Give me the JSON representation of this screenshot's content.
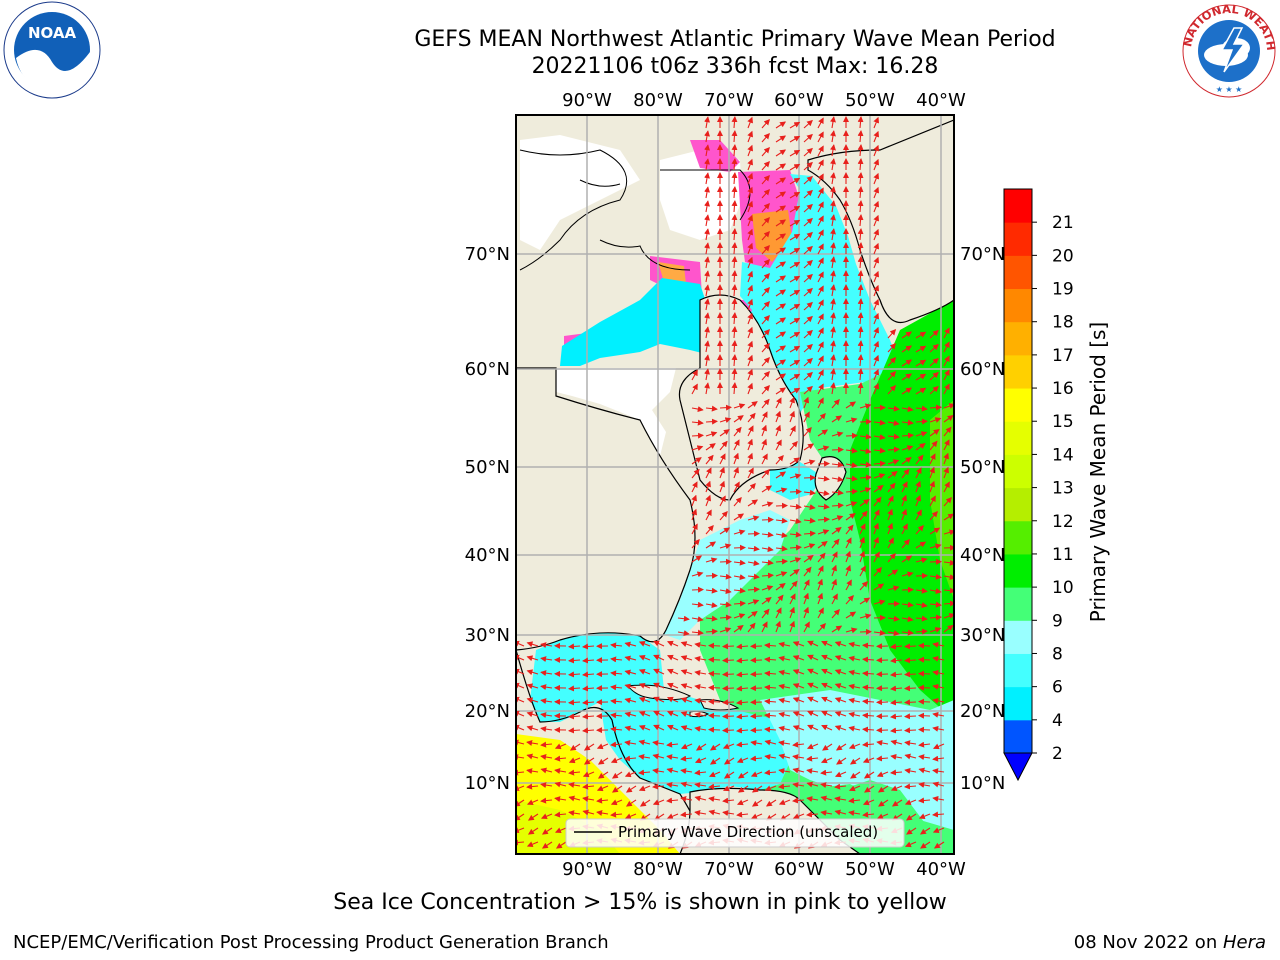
{
  "title": {
    "line1": "GEFS MEAN Northwest Atlantic Primary Wave Mean Period",
    "line2": "20221106 t06z 336h fcst   Max: 16.28"
  },
  "map": {
    "lon_labels": [
      "90°W",
      "80°W",
      "70°W",
      "60°W",
      "50°W",
      "40°W"
    ],
    "lat_labels": [
      "70°N",
      "60°N",
      "50°N",
      "40°N",
      "30°N",
      "20°N",
      "10°N"
    ],
    "legend_label": "Primary Wave Direction (unscaled)",
    "colors": {
      "land": "#efecdc",
      "ice_free_white": "#ffffff",
      "arrow": "#e8201c",
      "grid": "#b0b0b0"
    }
  },
  "colorbar": {
    "label": "Primary Wave Mean Period [s]",
    "ticks": [
      "2",
      "4",
      "6",
      "8",
      "9",
      "10",
      "11",
      "12",
      "13",
      "14",
      "15",
      "16",
      "17",
      "18",
      "19",
      "20",
      "21"
    ],
    "colors": [
      "#0055ff",
      "#00f0ff",
      "#44ffff",
      "#99ffff",
      "#44ff77",
      "#00ee00",
      "#55ee00",
      "#b5ee00",
      "#ccff00",
      "#e5ff00",
      "#ffff00",
      "#ffd000",
      "#ffb000",
      "#ff8800",
      "#ff5500",
      "#ff2a00",
      "#ff0000"
    ],
    "extend_color": "#0000ff"
  },
  "caption": "Sea Ice Concentration > 15% is shown in pink to yellow",
  "footer": {
    "left": "NCEP/EMC/Verification Post Processing Product Generation Branch",
    "date": "08 Nov 2022 on ",
    "host": "Hera"
  },
  "logos": {
    "noaa_text": "NOAA",
    "nws_text": "NATIONAL WEATHER SERVICE"
  }
}
